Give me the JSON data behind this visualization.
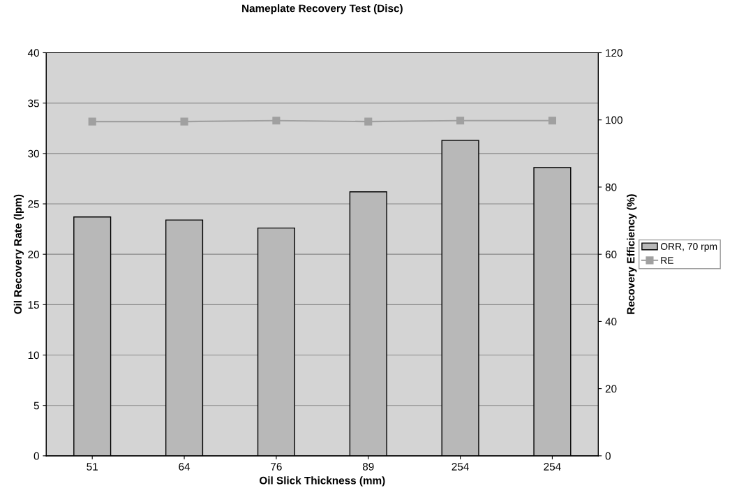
{
  "chart_data": {
    "type": "bar",
    "title": "Nameplate Recovery Test (Disc)",
    "xlabel": "Oil Slick Thickness (mm)",
    "ylabel": "Oil Recovery Rate (lpm)",
    "y2label": "Recovery Efficiency (%)",
    "categories": [
      "51",
      "64",
      "76",
      "89",
      "254",
      "254"
    ],
    "series": [
      {
        "name": "ORR, 70 rpm",
        "color": "#b8b8b8",
        "values": [
          23.7,
          23.4,
          22.6,
          26.2,
          31.3,
          28.6
        ]
      },
      {
        "name": "RE",
        "type": "line",
        "axis": "y2",
        "color": "#a0a0a0",
        "marker": "square",
        "values": [
          99.5,
          99.5,
          99.8,
          99.5,
          99.8,
          99.8
        ]
      }
    ],
    "ylim": [
      0,
      40
    ],
    "yticks": [
      0,
      5,
      10,
      15,
      20,
      25,
      30,
      35,
      40
    ],
    "y2lim": [
      0,
      120
    ],
    "y2ticks": [
      0,
      20,
      40,
      60,
      80,
      100,
      120
    ],
    "grid": "y",
    "legend": "right"
  }
}
